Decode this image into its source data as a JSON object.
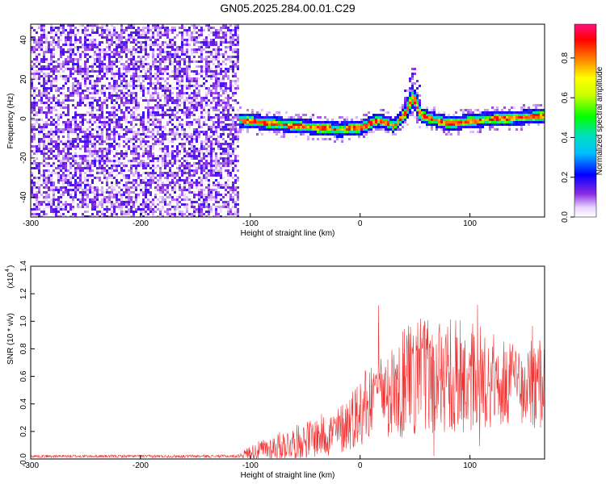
{
  "title": "GN05.2025.284.00.01.C29",
  "chart_data": [
    {
      "type": "heatmap",
      "name": "spectrogram",
      "xlabel": "Height of straight line (km)",
      "ylabel": "Frequency (Hz)",
      "xlim": [
        -300,
        168
      ],
      "ylim": [
        -50,
        48
      ],
      "xticks": [
        -300,
        -200,
        -100,
        0,
        100
      ],
      "yticks": [
        -40,
        -20,
        0,
        20,
        40
      ],
      "noise_region_x": [
        -300,
        -112
      ],
      "ridge": [
        {
          "x": -112,
          "y": 0
        },
        {
          "x": -80,
          "y": -2
        },
        {
          "x": -60,
          "y": -3
        },
        {
          "x": -40,
          "y": -4
        },
        {
          "x": -20,
          "y": -5
        },
        {
          "x": 0,
          "y": -4
        },
        {
          "x": 15,
          "y": 0
        },
        {
          "x": 30,
          "y": -3
        },
        {
          "x": 40,
          "y": 3
        },
        {
          "x": 47,
          "y": 12
        },
        {
          "x": 55,
          "y": 2
        },
        {
          "x": 80,
          "y": -2
        },
        {
          "x": 110,
          "y": 0
        },
        {
          "x": 140,
          "y": 1
        },
        {
          "x": 168,
          "y": 2
        }
      ],
      "colorbar": {
        "label": "Normalized spectral amplitude",
        "ticks": [
          0.0,
          0.2,
          0.4,
          0.6,
          0.8
        ],
        "tick_labels": [
          "0.0",
          "0.2",
          "0.4",
          "0.6",
          "0.8"
        ],
        "range": [
          0,
          0.97
        ]
      }
    },
    {
      "type": "line",
      "name": "snr",
      "xlabel": "Height of straight line (km)",
      "ylabel": "SNR (10 * v/v)",
      "multiplier": "(x10",
      "multiplier_exp": "4",
      "xlim": [
        -300,
        168
      ],
      "ylim": [
        0,
        1.4
      ],
      "xticks": [
        -300,
        -200,
        -100,
        0,
        100
      ],
      "yticks": [
        0.0,
        0.2,
        0.4,
        0.6,
        0.8,
        1.0,
        1.2,
        1.4
      ],
      "ytick_labels": [
        "0.0",
        "0.2",
        "0.4",
        "0.6",
        "0.8",
        "1.0",
        "1.2",
        "1.4"
      ],
      "color": "#ee3333",
      "envelope": [
        {
          "x": -300,
          "base": 0.02,
          "amp": 0.01
        },
        {
          "x": -112,
          "base": 0.02,
          "amp": 0.01
        },
        {
          "x": -100,
          "base": 0.05,
          "amp": 0.05
        },
        {
          "x": -80,
          "base": 0.08,
          "amp": 0.1
        },
        {
          "x": -60,
          "base": 0.12,
          "amp": 0.12
        },
        {
          "x": -20,
          "base": 0.2,
          "amp": 0.18
        },
        {
          "x": 0,
          "base": 0.35,
          "amp": 0.25
        },
        {
          "x": 20,
          "base": 0.5,
          "amp": 0.35
        },
        {
          "x": 60,
          "base": 0.6,
          "amp": 0.45
        },
        {
          "x": 100,
          "base": 0.6,
          "amp": 0.4
        },
        {
          "x": 140,
          "base": 0.55,
          "amp": 0.3
        },
        {
          "x": 168,
          "base": 0.55,
          "amp": 0.35
        }
      ]
    }
  ]
}
